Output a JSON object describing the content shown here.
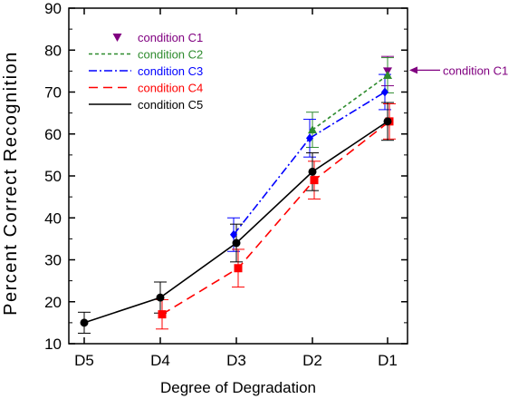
{
  "chart_data": {
    "type": "line",
    "title": "",
    "xlabel": "Degree of Degradation",
    "ylabel": "Percent Correct Recognition",
    "categories": [
      "D5",
      "D4",
      "D3",
      "D2",
      "D1"
    ],
    "ylim": [
      10,
      90
    ],
    "yticks": [
      10,
      20,
      30,
      40,
      50,
      60,
      70,
      80,
      90
    ],
    "grid": false,
    "legend_position": "top-left",
    "series": [
      {
        "name": "condition C1",
        "color": "#800080",
        "line": "none",
        "marker": "triangle-down",
        "values": [
          null,
          null,
          null,
          null,
          75
        ],
        "errors": [
          null,
          null,
          null,
          null,
          3.5
        ]
      },
      {
        "name": "condition C2",
        "color": "#2e8b2e",
        "line": "dotted",
        "marker": "triangle-up",
        "values": [
          null,
          null,
          null,
          61,
          74
        ],
        "errors": [
          null,
          null,
          null,
          4.2,
          4.2
        ]
      },
      {
        "name": "condition C3",
        "color": "#0000ff",
        "line": "dashdot",
        "marker": "diamond",
        "values": [
          null,
          null,
          36,
          59,
          70
        ],
        "errors": [
          null,
          null,
          4.0,
          4.5,
          4.2
        ]
      },
      {
        "name": "condition C4",
        "color": "#ff0000",
        "line": "dashed",
        "marker": "square",
        "values": [
          null,
          17,
          28,
          49,
          63
        ],
        "errors": [
          null,
          3.5,
          4.5,
          4.5,
          4.2
        ]
      },
      {
        "name": "condition C5",
        "color": "#000000",
        "line": "solid",
        "marker": "circle",
        "values": [
          15,
          21,
          34,
          51,
          63
        ],
        "errors": [
          2.5,
          3.7,
          4.5,
          4.5,
          4.5
        ]
      }
    ],
    "annotations": [
      {
        "text": "condition C1",
        "target_series": "condition C1",
        "target_category": "D1",
        "color": "#800080"
      }
    ]
  }
}
